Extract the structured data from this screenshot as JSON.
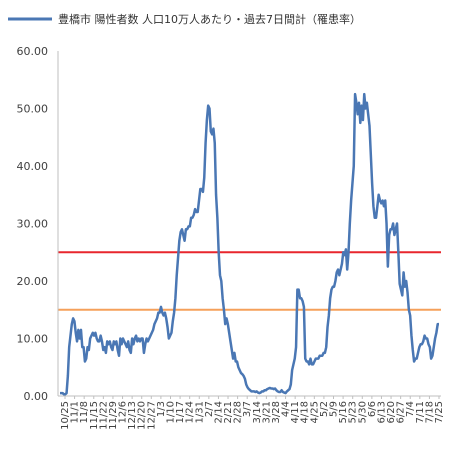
{
  "chart_data": {
    "type": "line",
    "title": "",
    "xlabel": "",
    "ylabel": "",
    "ylim": [
      0,
      60
    ],
    "yticks": [
      "0.00",
      "10.00",
      "20.00",
      "30.00",
      "40.00",
      "50.00",
      "60.00"
    ],
    "grid": false,
    "legend_position": "top",
    "legend": "豊橋市 陽性者数 人口10万人あたり・過去7日間計（罹患率）",
    "x_tick_labels": [
      "10/25",
      "11/1",
      "11/8",
      "11/15",
      "11/22",
      "11/29",
      "12/6",
      "12/13",
      "12/20",
      "12/27",
      "1/3",
      "1/10",
      "1/17",
      "1/24",
      "1/31",
      "2/7",
      "2/14",
      "2/21",
      "2/28",
      "3/7",
      "3/14",
      "3/21",
      "3/28",
      "4/4",
      "4/11",
      "4/18",
      "4/25",
      "5/2",
      "5/9",
      "5/16",
      "5/23",
      "5/30",
      "6/6",
      "6/13",
      "6/20",
      "6/27",
      "7/4",
      "7/11",
      "7/18",
      "7/25"
    ],
    "thresholds": [
      {
        "value": 25,
        "color": "#e8262d"
      },
      {
        "value": 15,
        "color": "#f5a05a"
      }
    ],
    "series": [
      {
        "name": "豊橋市 陽性者数 人口10万人あたり・過去7日間計（罹患率）",
        "color": "#4a77b4",
        "values": [
          0.5,
          0.5,
          0.5,
          0.3,
          0.3,
          0.5,
          3.5,
          8.5,
          10.5,
          12.5,
          13.5,
          13,
          11,
          9.5,
          11.5,
          10,
          11.5,
          8.5,
          8.5,
          6,
          6.5,
          8.5,
          8,
          10,
          10.5,
          11,
          10.5,
          11,
          10,
          9.5,
          9.5,
          10.5,
          9.5,
          8,
          8.5,
          7.5,
          9.5,
          9,
          9.5,
          8.5,
          8,
          9.5,
          9,
          9.5,
          8,
          7,
          10,
          9,
          10,
          9.5,
          9,
          8.5,
          9.5,
          8,
          7.5,
          10,
          9,
          10,
          10.5,
          9.5,
          10,
          9.5,
          10,
          10,
          7.5,
          9,
          10,
          9.5,
          10,
          10.5,
          11,
          11.5,
          12.5,
          13,
          13.5,
          14.5,
          14.5,
          15.5,
          14.5,
          14,
          14.5,
          13.5,
          12,
          10,
          10.5,
          11,
          13,
          14.5,
          17,
          21,
          24,
          27,
          28.5,
          29,
          28,
          27,
          29,
          29,
          29.5,
          29.5,
          31,
          31,
          31.5,
          32.5,
          32,
          32,
          34,
          36,
          36,
          35.5,
          38,
          44,
          48,
          50.5,
          50,
          46,
          45.5,
          46.5,
          44,
          35,
          31,
          25,
          21,
          20,
          17,
          15,
          12.5,
          13.5,
          12.5,
          11,
          9.5,
          8,
          6.5,
          7.5,
          6,
          6,
          5,
          4.5,
          4,
          3.8,
          3.5,
          3,
          2,
          1.5,
          1.2,
          1,
          0.8,
          0.8,
          0.8,
          0.7,
          0.8,
          0.6,
          0.5,
          0.6,
          0.8,
          0.8,
          1,
          1,
          1.2,
          1.3,
          1.4,
          1.3,
          1.3,
          1.2,
          1.3,
          1,
          0.8,
          0.7,
          0.7,
          1,
          0.7,
          0.6,
          0.5,
          0.8,
          1,
          1.2,
          2,
          4.5,
          5.5,
          6.5,
          8.5,
          18.5,
          18.5,
          17,
          17,
          16.5,
          15.5,
          6.5,
          6,
          6,
          5.5,
          6.5,
          5.5,
          5.5,
          6,
          6.5,
          6.5,
          6.5,
          7,
          7,
          7,
          7.5,
          7.5,
          8.5,
          12,
          14,
          17,
          18.5,
          19,
          19,
          20,
          21.5,
          22,
          21,
          22,
          23,
          25,
          24.5,
          25.5,
          22,
          25,
          30,
          34,
          37,
          40,
          52.5,
          51,
          49,
          51,
          47.5,
          50.5,
          48,
          52.5,
          50,
          51,
          49,
          47,
          42,
          37,
          33,
          31,
          31,
          33,
          35,
          34,
          33.5,
          34,
          33,
          34,
          30,
          22.5,
          28,
          29,
          29,
          30,
          28,
          29,
          30,
          25,
          19.5,
          18.5,
          17.5,
          21.5,
          19,
          20,
          18,
          15,
          14,
          10.5,
          8,
          6,
          6.5,
          6.5,
          7.5,
          8.5,
          9,
          9,
          9.5,
          10.5,
          10,
          10,
          9,
          8.5,
          6.5,
          7,
          8.5,
          10,
          11,
          12.5,
          12.5
        ]
      }
    ]
  }
}
